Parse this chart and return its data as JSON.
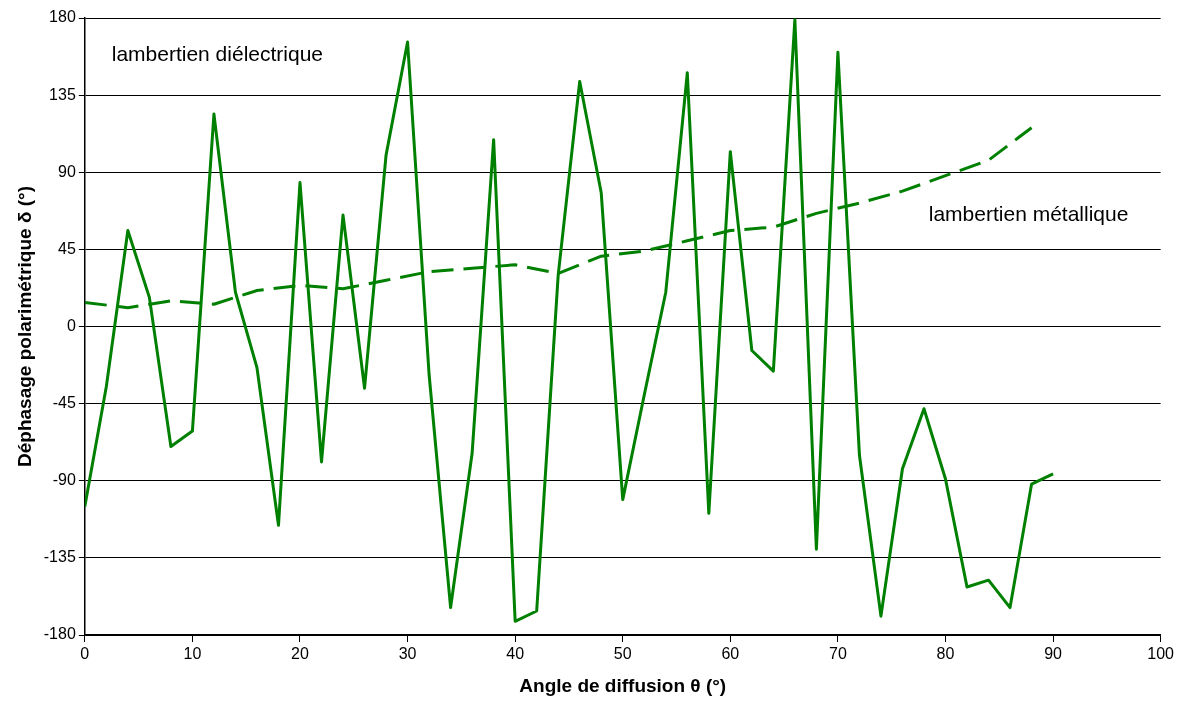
{
  "chart_data": {
    "type": "line",
    "xlabel": "Angle de diffusion θ (°)",
    "ylabel": "Déphasage polarimétrique δ (°)",
    "xlim": [
      0,
      100
    ],
    "xticks": [
      0,
      10,
      20,
      30,
      40,
      50,
      60,
      70,
      80,
      90,
      100
    ],
    "ylim": [
      -180,
      180
    ],
    "yticks": [
      -180,
      -135,
      -90,
      -45,
      0,
      45,
      90,
      135,
      180
    ],
    "grid": "y",
    "legend": false,
    "marker": "none",
    "series": [
      {
        "name": "lambertien diélectrique",
        "color": "#008000",
        "line_style": "solid",
        "x": [
          0,
          2,
          4,
          6,
          8,
          10,
          12,
          14,
          16,
          18,
          20,
          22,
          24,
          26,
          28,
          30,
          32,
          34,
          36,
          38,
          40,
          42,
          44,
          46,
          48,
          50,
          52,
          54,
          56,
          58,
          60,
          62,
          64,
          66,
          68,
          70,
          72,
          74,
          76,
          78,
          80,
          82,
          84,
          86,
          88,
          90
        ],
        "values": [
          -105,
          -35,
          56,
          17,
          -70,
          -61,
          124,
          20,
          -24,
          -116,
          84,
          -79,
          65,
          -36,
          100,
          166,
          -28,
          -164,
          -74,
          109,
          -172,
          -166,
          30,
          143,
          78,
          -101,
          -40,
          20,
          148,
          -109,
          102,
          -14,
          -26,
          179,
          -130,
          160,
          -75,
          -169,
          -83,
          -48,
          -89,
          -152,
          -148,
          -164,
          -92,
          -86
        ]
      },
      {
        "name": "lambertien métallique",
        "color": "#008000",
        "line_style": "dashed",
        "x": [
          0,
          4,
          8,
          12,
          16,
          20,
          24,
          28,
          32,
          36,
          40,
          44,
          48,
          52,
          56,
          60,
          64,
          68,
          72,
          76,
          80,
          84,
          88
        ],
        "values": [
          14,
          11,
          15,
          13,
          21,
          24,
          22,
          27,
          32,
          34,
          36,
          31,
          41,
          44,
          50,
          56,
          58,
          66,
          72,
          79,
          88,
          97,
          116
        ]
      }
    ]
  }
}
